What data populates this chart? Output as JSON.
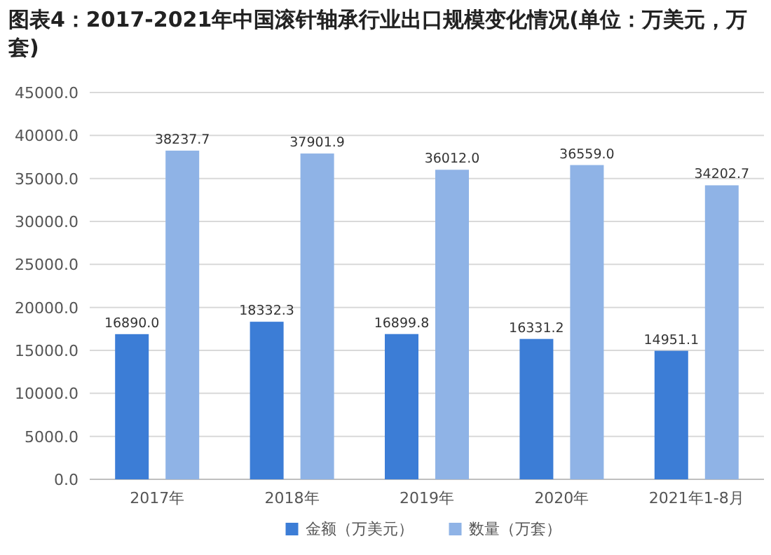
{
  "chart_data": {
    "type": "bar",
    "title": "图表4：2017-2021年中国滚针轴承行业出口规模变化情况(单位：万美元，万套)",
    "categories": [
      "2017年",
      "2018年",
      "2019年",
      "2020年",
      "2021年1-8月"
    ],
    "series": [
      {
        "name": "金额（万美元）",
        "color": "#3c7dd6",
        "values": [
          16890.0,
          18332.3,
          16899.8,
          16331.2,
          14951.1
        ],
        "value_labels": [
          "16890.0",
          "18332.3",
          "16899.8",
          "16331.2",
          "14951.1"
        ]
      },
      {
        "name": "数量（万套）",
        "color": "#8fb3e6",
        "values": [
          38237.7,
          37901.9,
          36012.0,
          36559.0,
          34202.7
        ],
        "value_labels": [
          "38237.7",
          "37901.9",
          "36012.0",
          "36559.0",
          "34202.7"
        ]
      }
    ],
    "ylim": [
      0,
      45000
    ],
    "yticks": [
      {
        "value": 0,
        "label": "0.0"
      },
      {
        "value": 5000,
        "label": "5000.0"
      },
      {
        "value": 10000,
        "label": "10000.0"
      },
      {
        "value": 15000,
        "label": "15000.0"
      },
      {
        "value": 20000,
        "label": "20000.0"
      },
      {
        "value": 25000,
        "label": "25000.0"
      },
      {
        "value": 30000,
        "label": "30000.0"
      },
      {
        "value": 35000,
        "label": "35000.0"
      },
      {
        "value": 40000,
        "label": "40000.0"
      },
      {
        "value": 45000,
        "label": "45000.0"
      }
    ],
    "grid": "y",
    "legend": "bottom"
  }
}
